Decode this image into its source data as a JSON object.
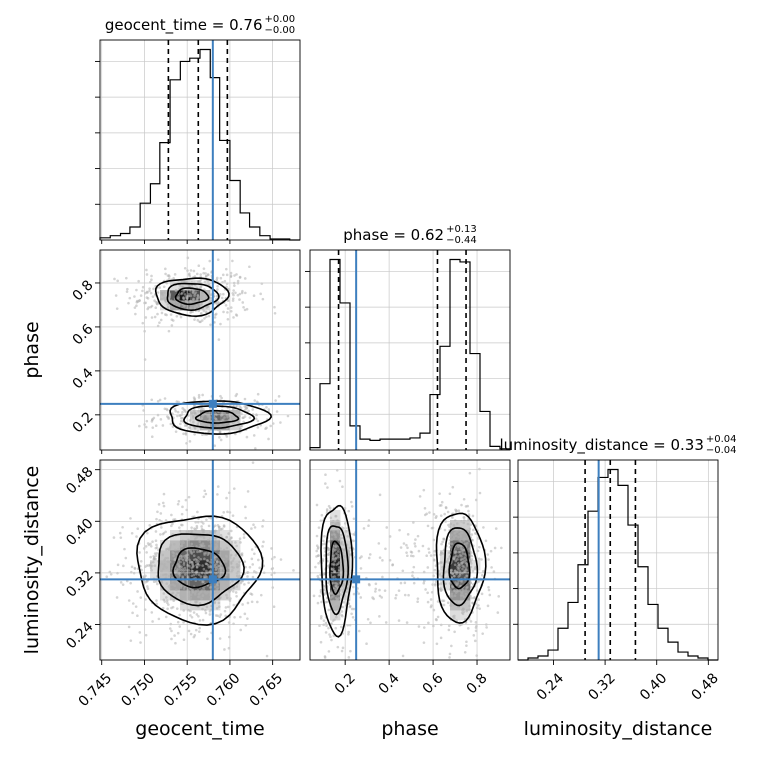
{
  "chart_data": {
    "type": "corner",
    "parameters": [
      "geocent_time",
      "phase",
      "luminosity_distance"
    ],
    "truth_color": "#3d7fbf",
    "truths": {
      "geocent_time": 0.758,
      "phase": 0.25,
      "luminosity_distance": 0.31
    },
    "ranges": {
      "geocent_time": [
        0.7448,
        0.7682
      ],
      "phase": [
        0.04,
        0.95
      ],
      "luminosity_distance": [
        0.185,
        0.495
      ]
    },
    "ticks": {
      "geocent_time": [
        "0.745",
        "0.750",
        "0.755",
        "0.760",
        "0.765"
      ],
      "phase": [
        "0.2",
        "0.4",
        "0.6",
        "0.8"
      ],
      "luminosity_distance": [
        "0.24",
        "0.32",
        "0.40",
        "0.48"
      ]
    },
    "titles": [
      {
        "param": "geocent_time",
        "main": "geocent_time = 0.76",
        "sup": "+0.00",
        "sub": "−0.00"
      },
      {
        "param": "phase",
        "main": "phase = 0.62",
        "sup": "+0.13",
        "sub": "−0.44"
      },
      {
        "param": "luminosity_distance",
        "main": "luminosity_distance = 0.33",
        "sup": "+0.04",
        "sub": "−0.04"
      }
    ],
    "quantiles": {
      "geocent_time": [
        0.7528,
        0.7563,
        0.7597
      ],
      "phase": [
        0.17,
        0.62,
        0.75
      ],
      "luminosity_distance": [
        0.289,
        0.328,
        0.367
      ]
    },
    "histograms": {
      "geocent_time": {
        "edges": [
          0.7448,
          0.746,
          0.7472,
          0.7483,
          0.7495,
          0.7507,
          0.7518,
          0.753,
          0.7542,
          0.7553,
          0.7565,
          0.7577,
          0.7588,
          0.76,
          0.7612,
          0.7623,
          0.7635,
          0.7647,
          0.7658,
          0.767,
          0.7682
        ],
        "counts": [
          2,
          4,
          6,
          12,
          34,
          52,
          90,
          148,
          165,
          168,
          176,
          150,
          92,
          55,
          25,
          12,
          4,
          1,
          1,
          0
        ]
      },
      "phase": {
        "edges": [
          0.04,
          0.0855,
          0.131,
          0.1765,
          0.222,
          0.2675,
          0.313,
          0.3585,
          0.404,
          0.4495,
          0.495,
          0.5405,
          0.586,
          0.6315,
          0.677,
          0.7225,
          0.768,
          0.8135,
          0.859,
          0.9045,
          0.95
        ],
        "counts": [
          2,
          55,
          158,
          122,
          20,
          9,
          8,
          9,
          9,
          9,
          10,
          14,
          46,
          86,
          158,
          156,
          80,
          32,
          3,
          1
        ]
      },
      "luminosity_distance": {
        "edges": [
          0.185,
          0.2005,
          0.216,
          0.2315,
          0.247,
          0.2625,
          0.278,
          0.2935,
          0.309,
          0.3245,
          0.34,
          0.3555,
          0.371,
          0.3865,
          0.402,
          0.4175,
          0.433,
          0.4485,
          0.464,
          0.4795,
          0.495
        ],
        "counts": [
          0,
          1,
          2,
          5,
          16,
          29,
          48,
          75,
          92,
          96,
          88,
          68,
          47,
          28,
          16,
          9,
          4,
          2,
          1,
          0
        ]
      }
    },
    "scatter_blobs": [
      {
        "x": "geocent_time",
        "y": "phase",
        "cx": 0.7555,
        "cy": 0.74,
        "sx": 0.0028,
        "sy": 0.055,
        "n": 420
      },
      {
        "x": "geocent_time",
        "y": "phase",
        "cx": 0.7582,
        "cy": 0.19,
        "sx": 0.0028,
        "sy": 0.038,
        "n": 320
      },
      {
        "x": "geocent_time",
        "y": "luminosity_distance",
        "cx": 0.7563,
        "cy": 0.328,
        "sx": 0.0031,
        "sy": 0.038,
        "n": 850
      },
      {
        "x": "phase",
        "y": "luminosity_distance",
        "cx": 0.16,
        "cy": 0.328,
        "sx": 0.035,
        "sy": 0.042,
        "n": 420
      },
      {
        "x": "phase",
        "y": "luminosity_distance",
        "cx": 0.72,
        "cy": 0.328,
        "sx": 0.055,
        "sy": 0.042,
        "n": 450
      },
      {
        "x": "phase",
        "y": "luminosity_distance",
        "cx": 0.45,
        "cy": 0.328,
        "sx": 0.14,
        "sy": 0.045,
        "n": 120
      }
    ],
    "contours": [
      {
        "x": "geocent_time",
        "y": "phase",
        "cx": 0.7555,
        "cy": 0.74,
        "rx": [
          0.0042,
          0.003,
          0.0019
        ],
        "ry": [
          0.085,
          0.06,
          0.036
        ]
      },
      {
        "x": "geocent_time",
        "y": "phase",
        "cx": 0.7585,
        "cy": 0.19,
        "rx": [
          0.0058,
          0.004,
          0.0024
        ],
        "ry": [
          0.075,
          0.05,
          0.028
        ]
      },
      {
        "x": "geocent_time",
        "y": "luminosity_distance",
        "cx": 0.7563,
        "cy": 0.328,
        "rx": [
          0.0072,
          0.005,
          0.003
        ],
        "ry": [
          0.083,
          0.055,
          0.03
        ]
      },
      {
        "x": "phase",
        "y": "luminosity_distance",
        "cx": 0.16,
        "cy": 0.328,
        "rx": [
          0.07,
          0.05,
          0.03
        ],
        "ry": [
          0.1,
          0.068,
          0.04
        ]
      },
      {
        "x": "phase",
        "y": "luminosity_distance",
        "cx": 0.72,
        "cy": 0.33,
        "rx": [
          0.11,
          0.075,
          0.045
        ],
        "ry": [
          0.085,
          0.06,
          0.035
        ]
      }
    ],
    "density_peaks": [
      {
        "x": "geocent_time",
        "y": "phase",
        "cx": 0.7548,
        "cy": 0.735,
        "sx": 0.0015,
        "sy": 0.03,
        "w": 1.0
      },
      {
        "x": "geocent_time",
        "y": "phase",
        "cx": 0.7585,
        "cy": 0.18,
        "sx": 0.0017,
        "sy": 0.02,
        "w": 1.0
      },
      {
        "x": "geocent_time",
        "y": "luminosity_distance",
        "cx": 0.7563,
        "cy": 0.328,
        "sx": 0.0026,
        "sy": 0.032,
        "w": 0.9
      },
      {
        "x": "phase",
        "y": "luminosity_distance",
        "cx": 0.16,
        "cy": 0.33,
        "sx": 0.025,
        "sy": 0.04,
        "w": 0.95
      },
      {
        "x": "phase",
        "y": "luminosity_distance",
        "cx": 0.72,
        "cy": 0.33,
        "sx": 0.035,
        "sy": 0.04,
        "w": 0.95
      }
    ],
    "axis_labels": {
      "x": [
        "geocent_time",
        "phase",
        "luminosity_distance"
      ],
      "y": [
        "phase",
        "luminosity_distance"
      ]
    },
    "grid": true
  }
}
